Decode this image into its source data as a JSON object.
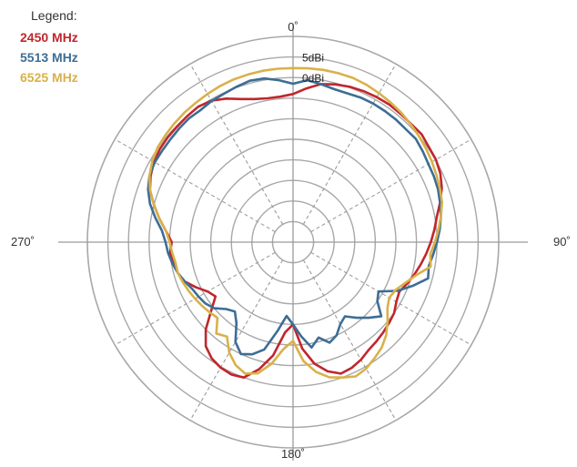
{
  "chart_data": {
    "type": "polar",
    "title": "",
    "legend": {
      "title": "Legend:",
      "position": "top-left"
    },
    "angular_axis": {
      "direction": "clockwise",
      "zero_at": "top",
      "labels": [
        {
          "angle": 0,
          "text": "0˚"
        },
        {
          "angle": 90,
          "text": "90˚"
        },
        {
          "angle": 180,
          "text": "180˚"
        },
        {
          "angle": 270,
          "text": "270˚"
        }
      ]
    },
    "radial_axis": {
      "unit": "dBi",
      "range": [
        -40,
        10
      ],
      "ring_step": 5,
      "labels": [
        {
          "value": 5,
          "text": "5dBi"
        },
        {
          "value": 0,
          "text": "0dBi"
        }
      ]
    },
    "grid": true,
    "series": [
      {
        "name": "2450 MHz",
        "color": "#c0262d",
        "points": [
          [
            0,
            -4
          ],
          [
            5,
            -2.5
          ],
          [
            10,
            -1
          ],
          [
            15,
            -0.3
          ],
          [
            20,
            0.2
          ],
          [
            25,
            0.5
          ],
          [
            30,
            0.7
          ],
          [
            35,
            0.8
          ],
          [
            40,
            0.7
          ],
          [
            45,
            0.6
          ],
          [
            50,
            0.8
          ],
          [
            55,
            0.3
          ],
          [
            60,
            0.1
          ],
          [
            65,
            -0.5
          ],
          [
            70,
            -1.5
          ],
          [
            75,
            -3
          ],
          [
            80,
            -4.5
          ],
          [
            85,
            -5.5
          ],
          [
            90,
            -6.5
          ],
          [
            95,
            -7.5
          ],
          [
            100,
            -8.5
          ],
          [
            105,
            -9.5
          ],
          [
            110,
            -10.5
          ],
          [
            115,
            -11.5
          ],
          [
            120,
            -11
          ],
          [
            125,
            -10
          ],
          [
            130,
            -9.5
          ],
          [
            135,
            -9
          ],
          [
            140,
            -8.5
          ],
          [
            145,
            -8
          ],
          [
            150,
            -7
          ],
          [
            155,
            -6.3
          ],
          [
            160,
            -6
          ],
          [
            165,
            -7.5
          ],
          [
            170,
            -10
          ],
          [
            175,
            -14
          ],
          [
            180,
            -20
          ],
          [
            185,
            -18
          ],
          [
            190,
            -12
          ],
          [
            195,
            -8
          ],
          [
            200,
            -5
          ],
          [
            205,
            -4.5
          ],
          [
            210,
            -4.8
          ],
          [
            215,
            -5.5
          ],
          [
            220,
            -7
          ],
          [
            225,
            -10
          ],
          [
            230,
            -14
          ],
          [
            235,
            -17
          ],
          [
            240,
            -16
          ],
          [
            245,
            -14
          ],
          [
            250,
            -12
          ],
          [
            255,
            -11
          ],
          [
            260,
            -10.5
          ],
          [
            265,
            -10
          ],
          [
            270,
            -10.5
          ],
          [
            275,
            -9
          ],
          [
            280,
            -7
          ],
          [
            285,
            -5
          ],
          [
            290,
            -3
          ],
          [
            295,
            -1.8
          ],
          [
            300,
            -1
          ],
          [
            305,
            -0.5
          ],
          [
            310,
            -0.3
          ],
          [
            315,
            -0.2
          ],
          [
            320,
            0
          ],
          [
            325,
            0.2
          ],
          [
            330,
            -0.3
          ],
          [
            335,
            -1.5
          ],
          [
            340,
            -3
          ],
          [
            345,
            -4
          ],
          [
            350,
            -4.5
          ],
          [
            355,
            -4.5
          ],
          [
            360,
            -4
          ]
        ]
      },
      {
        "name": "5513 MHz",
        "color": "#3d6d95",
        "points": [
          [
            0,
            -1.5
          ],
          [
            5,
            -0.5
          ],
          [
            10,
            -1
          ],
          [
            15,
            -1.5
          ],
          [
            20,
            -1.5
          ],
          [
            25,
            -1.2
          ],
          [
            30,
            -1.1
          ],
          [
            35,
            -1.1
          ],
          [
            40,
            -1.1
          ],
          [
            45,
            -1.2
          ],
          [
            50,
            -1
          ],
          [
            55,
            -1.5
          ],
          [
            60,
            -2
          ],
          [
            65,
            -2.2
          ],
          [
            70,
            -2.5
          ],
          [
            75,
            -3
          ],
          [
            80,
            -3.5
          ],
          [
            85,
            -4.2
          ],
          [
            90,
            -5
          ],
          [
            95,
            -5.8
          ],
          [
            100,
            -6.5
          ],
          [
            105,
            -6
          ],
          [
            110,
            -9
          ],
          [
            115,
            -12
          ],
          [
            120,
            -16
          ],
          [
            125,
            -15
          ],
          [
            130,
            -12
          ],
          [
            135,
            -14
          ],
          [
            140,
            -16
          ],
          [
            145,
            -18
          ],
          [
            150,
            -17
          ],
          [
            155,
            -15
          ],
          [
            160,
            -14
          ],
          [
            165,
            -16
          ],
          [
            170,
            -14
          ],
          [
            175,
            -17
          ],
          [
            180,
            -20
          ],
          [
            185,
            -22
          ],
          [
            190,
            -18
          ],
          [
            195,
            -13
          ],
          [
            200,
            -11
          ],
          [
            205,
            -10
          ],
          [
            210,
            -12
          ],
          [
            215,
            -16
          ],
          [
            220,
            -18
          ],
          [
            225,
            -17
          ],
          [
            230,
            -15
          ],
          [
            235,
            -14
          ],
          [
            240,
            -13.5
          ],
          [
            245,
            -13
          ],
          [
            250,
            -12
          ],
          [
            255,
            -11
          ],
          [
            260,
            -10.2
          ],
          [
            265,
            -9.5
          ],
          [
            270,
            -9
          ],
          [
            275,
            -8
          ],
          [
            280,
            -6
          ],
          [
            285,
            -4
          ],
          [
            290,
            -2.5
          ],
          [
            295,
            -1.5
          ],
          [
            300,
            -1.2
          ],
          [
            305,
            -1.2
          ],
          [
            310,
            -1.1
          ],
          [
            315,
            -0.9
          ],
          [
            320,
            -0.7
          ],
          [
            325,
            -0.8
          ],
          [
            330,
            -0.4
          ],
          [
            335,
            -0.2
          ],
          [
            340,
            0.2
          ],
          [
            345,
            0.6
          ],
          [
            350,
            0.4
          ],
          [
            355,
            -0.5
          ],
          [
            360,
            -1.5
          ]
        ]
      },
      {
        "name": "6525 MHz",
        "color": "#d9b14a",
        "points": [
          [
            0,
            2.3
          ],
          [
            5,
            2.4
          ],
          [
            10,
            2.5
          ],
          [
            15,
            2.5
          ],
          [
            20,
            2.5
          ],
          [
            25,
            2.2
          ],
          [
            30,
            1.8
          ],
          [
            35,
            1.4
          ],
          [
            40,
            1.0
          ],
          [
            45,
            0.5
          ],
          [
            50,
            0
          ],
          [
            55,
            -0.5
          ],
          [
            60,
            -1
          ],
          [
            65,
            -1.5
          ],
          [
            70,
            -2
          ],
          [
            75,
            -2.5
          ],
          [
            80,
            -3.5
          ],
          [
            85,
            -4.5
          ],
          [
            90,
            -5.5
          ],
          [
            95,
            -6.5
          ],
          [
            100,
            -6
          ],
          [
            105,
            -9
          ],
          [
            110,
            -11
          ],
          [
            115,
            -12.5
          ],
          [
            120,
            -13
          ],
          [
            125,
            -12
          ],
          [
            130,
            -10
          ],
          [
            135,
            -8
          ],
          [
            140,
            -6.5
          ],
          [
            145,
            -5.5
          ],
          [
            150,
            -4.5
          ],
          [
            155,
            -4
          ],
          [
            160,
            -5
          ],
          [
            165,
            -6
          ],
          [
            170,
            -8
          ],
          [
            175,
            -11
          ],
          [
            180,
            -16
          ],
          [
            185,
            -14
          ],
          [
            190,
            -10
          ],
          [
            195,
            -7
          ],
          [
            200,
            -6
          ],
          [
            205,
            -7
          ],
          [
            210,
            -9
          ],
          [
            215,
            -12
          ],
          [
            220,
            -11
          ],
          [
            225,
            -14
          ],
          [
            230,
            -13.5
          ],
          [
            235,
            -13
          ],
          [
            240,
            -12.5
          ],
          [
            245,
            -12
          ],
          [
            250,
            -11.5
          ],
          [
            255,
            -11
          ],
          [
            260,
            -11
          ],
          [
            265,
            -10.5
          ],
          [
            270,
            -10
          ],
          [
            275,
            -9
          ],
          [
            280,
            -7
          ],
          [
            285,
            -5
          ],
          [
            290,
            -3
          ],
          [
            295,
            -1.5
          ],
          [
            300,
            -0.5
          ],
          [
            305,
            0.2
          ],
          [
            310,
            0.5
          ],
          [
            315,
            0.8
          ],
          [
            320,
            1.1
          ],
          [
            325,
            1.3
          ],
          [
            330,
            1.6
          ],
          [
            335,
            1.9
          ],
          [
            340,
            2.1
          ],
          [
            345,
            2.2
          ],
          [
            350,
            2.3
          ],
          [
            355,
            2.3
          ],
          [
            360,
            2.3
          ]
        ]
      }
    ]
  }
}
